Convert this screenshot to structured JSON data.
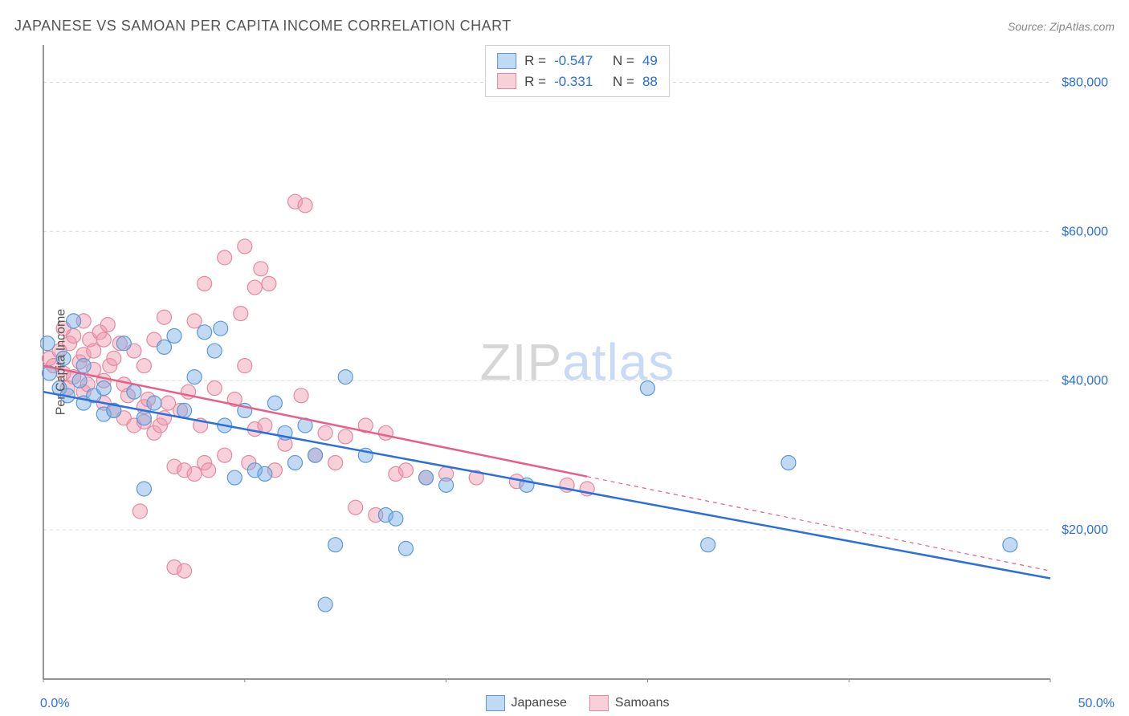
{
  "title": "JAPANESE VS SAMOAN PER CAPITA INCOME CORRELATION CHART",
  "source": "Source: ZipAtlas.com",
  "ylabel": "Per Capita Income",
  "watermark": {
    "part1": "ZIP",
    "part2": "atlas"
  },
  "chart": {
    "type": "scatter",
    "background_color": "#ffffff",
    "grid_color": "#d9d9d9",
    "axis_color": "#555555",
    "tick_color": "#888888",
    "xlim": [
      0,
      50
    ],
    "ylim": [
      0,
      85000
    ],
    "xtick_step": 10,
    "ytick_positions": [
      20000,
      40000,
      60000,
      80000
    ],
    "ytick_labels": [
      "$20,000",
      "$40,000",
      "$60,000",
      "$80,000"
    ],
    "ylabel_color": "#2a6fdb",
    "xlim_labels": [
      "0.0%",
      "50.0%"
    ],
    "series": [
      {
        "name": "Japanese",
        "fill": "rgba(120,170,230,0.45)",
        "stroke": "#5a9ad8",
        "line_color": "#2a6fdb",
        "r_value": "-0.547",
        "n_value": "49",
        "regression": {
          "x1": 0,
          "y1": 38500,
          "x2": 50,
          "y2": 13500,
          "solid_end_x": 50
        },
        "marker_r": 9,
        "points": [
          [
            0.2,
            45000
          ],
          [
            0.3,
            41000
          ],
          [
            0.8,
            39000
          ],
          [
            1.0,
            43000
          ],
          [
            1.2,
            38000
          ],
          [
            1.5,
            48000
          ],
          [
            1.8,
            40000
          ],
          [
            2.0,
            42000
          ],
          [
            2.0,
            37000
          ],
          [
            2.5,
            38000
          ],
          [
            3.0,
            39000
          ],
          [
            3.0,
            35500
          ],
          [
            3.5,
            36000
          ],
          [
            4.0,
            45000
          ],
          [
            4.5,
            38500
          ],
          [
            5.0,
            25500
          ],
          [
            5.0,
            35000
          ],
          [
            5.5,
            37000
          ],
          [
            6.0,
            44500
          ],
          [
            6.5,
            46000
          ],
          [
            7.0,
            36000
          ],
          [
            7.5,
            40500
          ],
          [
            8.0,
            46500
          ],
          [
            8.5,
            44000
          ],
          [
            8.8,
            47000
          ],
          [
            9.0,
            34000
          ],
          [
            9.5,
            27000
          ],
          [
            10.0,
            36000
          ],
          [
            10.5,
            28000
          ],
          [
            11.0,
            27500
          ],
          [
            11.5,
            37000
          ],
          [
            12.0,
            33000
          ],
          [
            12.5,
            29000
          ],
          [
            13.0,
            34000
          ],
          [
            13.5,
            30000
          ],
          [
            14.0,
            10000
          ],
          [
            14.5,
            18000
          ],
          [
            15.0,
            40500
          ],
          [
            16.0,
            30000
          ],
          [
            17.0,
            22000
          ],
          [
            17.5,
            21500
          ],
          [
            18.0,
            17500
          ],
          [
            19.0,
            27000
          ],
          [
            20.0,
            26000
          ],
          [
            24.0,
            26000
          ],
          [
            30.0,
            39000
          ],
          [
            33.0,
            18000
          ],
          [
            37.0,
            29000
          ],
          [
            48.0,
            18000
          ]
        ]
      },
      {
        "name": "Samoans",
        "fill": "rgba(240,150,170,0.45)",
        "stroke": "#e38aa0",
        "line_color": "#e75f89",
        "r_value": "-0.331",
        "n_value": "88",
        "regression": {
          "x1": 0,
          "y1": 42000,
          "x2": 50,
          "y2": 14500,
          "solid_end_x": 27
        },
        "marker_r": 9,
        "points": [
          [
            0.3,
            43000
          ],
          [
            0.5,
            42000
          ],
          [
            0.8,
            44000
          ],
          [
            1.0,
            41000
          ],
          [
            1.0,
            47000
          ],
          [
            1.2,
            39000
          ],
          [
            1.3,
            45000
          ],
          [
            1.5,
            46000
          ],
          [
            1.5,
            40500
          ],
          [
            1.8,
            42500
          ],
          [
            2.0,
            48000
          ],
          [
            2.0,
            43500
          ],
          [
            2.0,
            38500
          ],
          [
            2.2,
            39500
          ],
          [
            2.3,
            45500
          ],
          [
            2.5,
            41500
          ],
          [
            2.5,
            44000
          ],
          [
            2.8,
            46500
          ],
          [
            3.0,
            45500
          ],
          [
            3.0,
            40000
          ],
          [
            3.0,
            37000
          ],
          [
            3.2,
            47500
          ],
          [
            3.3,
            42000
          ],
          [
            3.5,
            43000
          ],
          [
            3.5,
            36000
          ],
          [
            3.8,
            45000
          ],
          [
            4.0,
            39500
          ],
          [
            4.0,
            35000
          ],
          [
            4.2,
            38000
          ],
          [
            4.5,
            44000
          ],
          [
            4.5,
            34000
          ],
          [
            4.8,
            22500
          ],
          [
            5.0,
            42000
          ],
          [
            5.0,
            34500
          ],
          [
            5.0,
            36500
          ],
          [
            5.2,
            37500
          ],
          [
            5.5,
            45500
          ],
          [
            5.5,
            33000
          ],
          [
            5.8,
            34000
          ],
          [
            6.0,
            48500
          ],
          [
            6.0,
            35000
          ],
          [
            6.2,
            37000
          ],
          [
            6.5,
            28500
          ],
          [
            6.5,
            15000
          ],
          [
            6.8,
            36000
          ],
          [
            7.0,
            28000
          ],
          [
            7.0,
            14500
          ],
          [
            7.2,
            38500
          ],
          [
            7.5,
            27500
          ],
          [
            7.5,
            48000
          ],
          [
            7.8,
            34000
          ],
          [
            8.0,
            53000
          ],
          [
            8.0,
            29000
          ],
          [
            8.2,
            28000
          ],
          [
            8.5,
            39000
          ],
          [
            9.0,
            56500
          ],
          [
            9.0,
            30000
          ],
          [
            9.5,
            37500
          ],
          [
            9.8,
            49000
          ],
          [
            10.0,
            42000
          ],
          [
            10.0,
            58000
          ],
          [
            10.2,
            29000
          ],
          [
            10.5,
            33500
          ],
          [
            10.5,
            52500
          ],
          [
            10.8,
            55000
          ],
          [
            11.0,
            34000
          ],
          [
            11.2,
            53000
          ],
          [
            11.5,
            28000
          ],
          [
            12.0,
            31500
          ],
          [
            12.5,
            64000
          ],
          [
            12.8,
            38000
          ],
          [
            13.0,
            63500
          ],
          [
            13.5,
            30000
          ],
          [
            14.0,
            33000
          ],
          [
            14.5,
            29000
          ],
          [
            15.0,
            32500
          ],
          [
            15.5,
            23000
          ],
          [
            16.0,
            34000
          ],
          [
            16.5,
            22000
          ],
          [
            17.0,
            33000
          ],
          [
            17.5,
            27500
          ],
          [
            18.0,
            28000
          ],
          [
            19.0,
            27000
          ],
          [
            20.0,
            27500
          ],
          [
            21.5,
            27000
          ],
          [
            23.5,
            26500
          ],
          [
            26.0,
            26000
          ],
          [
            27.0,
            25500
          ]
        ]
      }
    ]
  },
  "legend": {
    "r_label": "R =",
    "n_label": "N ="
  }
}
